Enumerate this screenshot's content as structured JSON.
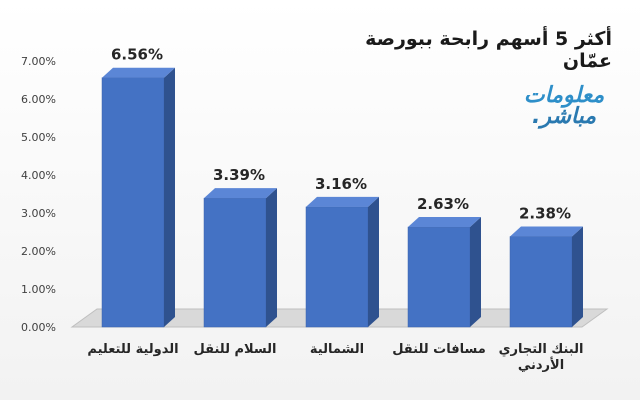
{
  "title": "أكثر 5 أسهم رابحة ببورصة عمّان",
  "logo": {
    "line1": "معلومات",
    "line2": "مباشر."
  },
  "chart_data": {
    "type": "bar",
    "title": "أكثر 5 أسهم رابحة ببورصة عمّان",
    "categories": [
      "الدولية للتعليم",
      "السلام للنقل",
      "الشمالية",
      "مسافات للنقل",
      "البنك التجاري الأردني"
    ],
    "values": [
      6.56,
      3.39,
      3.16,
      2.63,
      2.38
    ],
    "value_labels": [
      "6.56%",
      "3.39%",
      "3.16%",
      "2.63%",
      "2.38%"
    ],
    "y_ticks": [
      "0.00%",
      "1.00%",
      "2.00%",
      "3.00%",
      "4.00%",
      "5.00%",
      "6.00%",
      "7.00%"
    ],
    "ylim": [
      0,
      7
    ],
    "xlabel": "",
    "ylabel": "",
    "grid": false,
    "colors": {
      "bar_front": "#4472c4",
      "bar_side": "#2f528f",
      "bar_top": "#5b86d6"
    }
  }
}
